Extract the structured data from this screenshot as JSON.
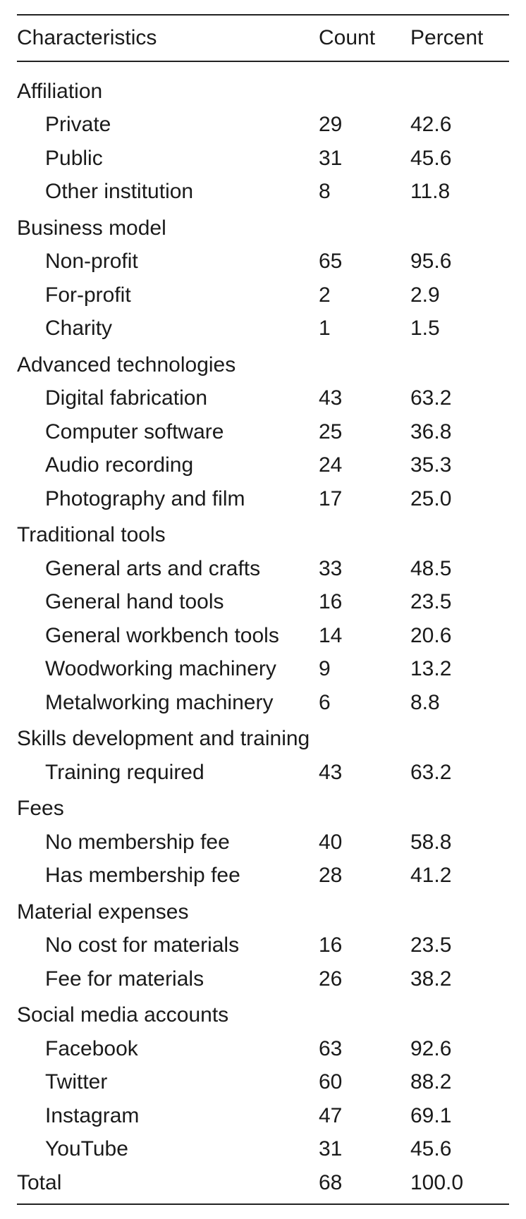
{
  "columns": {
    "characteristics": "Characteristics",
    "count": "Count",
    "percent": "Percent"
  },
  "sections": [
    {
      "title": "Affiliation",
      "rows": [
        {
          "label": "Private",
          "count": "29",
          "percent": "42.6"
        },
        {
          "label": "Public",
          "count": "31",
          "percent": "45.6"
        },
        {
          "label": "Other institution",
          "count": "8",
          "percent": "11.8"
        }
      ]
    },
    {
      "title": "Business model",
      "rows": [
        {
          "label": "Non-profit",
          "count": "65",
          "percent": "95.6"
        },
        {
          "label": "For-profit",
          "count": "2",
          "percent": "2.9"
        },
        {
          "label": "Charity",
          "count": "1",
          "percent": "1.5"
        }
      ]
    },
    {
      "title": "Advanced technologies",
      "rows": [
        {
          "label": "Digital fabrication",
          "count": "43",
          "percent": "63.2"
        },
        {
          "label": "Computer software",
          "count": "25",
          "percent": "36.8"
        },
        {
          "label": "Audio recording",
          "count": "24",
          "percent": "35.3"
        },
        {
          "label": "Photography and film",
          "count": "17",
          "percent": "25.0"
        }
      ]
    },
    {
      "title": "Traditional tools",
      "rows": [
        {
          "label": "General arts and crafts",
          "count": "33",
          "percent": "48.5"
        },
        {
          "label": "General hand tools",
          "count": "16",
          "percent": "23.5"
        },
        {
          "label": "General workbench tools",
          "count": "14",
          "percent": "20.6"
        },
        {
          "label": "Woodworking machinery",
          "count": "9",
          "percent": "13.2"
        },
        {
          "label": "Metalworking machinery",
          "count": "6",
          "percent": "8.8"
        }
      ]
    },
    {
      "title": "Skills development and training",
      "rows": [
        {
          "label": "Training required",
          "count": "43",
          "percent": "63.2"
        }
      ]
    },
    {
      "title": "Fees",
      "rows": [
        {
          "label": "No membership fee",
          "count": "40",
          "percent": "58.8"
        },
        {
          "label": "Has membership fee",
          "count": "28",
          "percent": "41.2"
        }
      ]
    },
    {
      "title": "Material expenses",
      "rows": [
        {
          "label": "No cost for materials",
          "count": "16",
          "percent": "23.5"
        },
        {
          "label": "Fee for materials",
          "count": "26",
          "percent": "38.2"
        }
      ]
    },
    {
      "title": "Social media accounts",
      "rows": [
        {
          "label": "Facebook",
          "count": "63",
          "percent": "92.6"
        },
        {
          "label": "Twitter",
          "count": "60",
          "percent": "88.2"
        },
        {
          "label": "Instagram",
          "count": "47",
          "percent": "69.1"
        },
        {
          "label": "YouTube",
          "count": "31",
          "percent": "45.6"
        }
      ]
    }
  ],
  "total": {
    "label": "Total",
    "count": "68",
    "percent": "100.0"
  }
}
